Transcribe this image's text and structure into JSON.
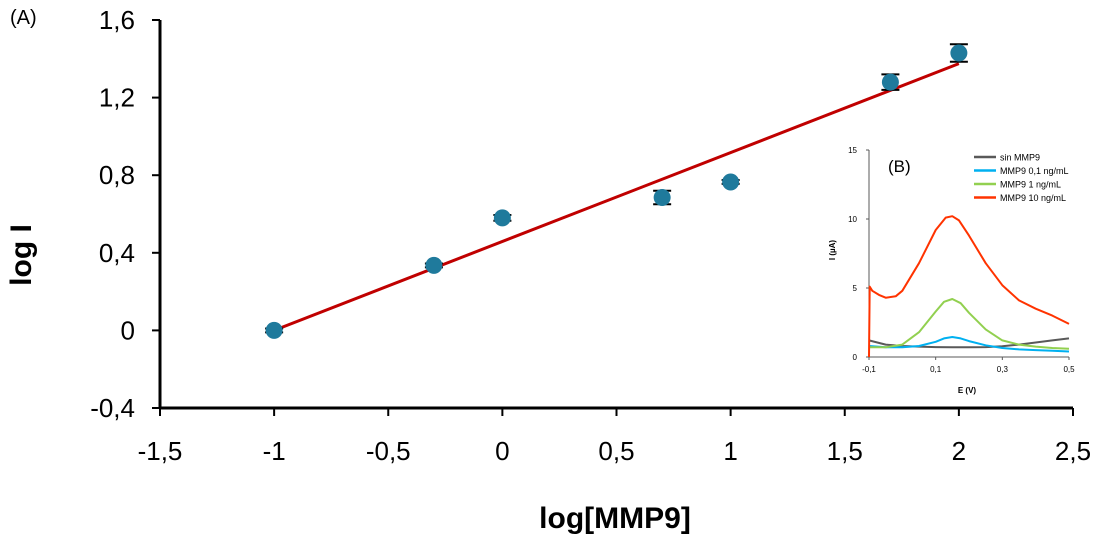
{
  "chart_data": [
    {
      "type": "scatter",
      "panel_label": "(A)",
      "xlabel": "log[MMP9]",
      "ylabel": "log I",
      "xlim": [
        -1.5,
        2.5
      ],
      "ylim": [
        -0.4,
        1.6
      ],
      "xticks": [
        -1.5,
        -1,
        -0.5,
        0,
        0.5,
        1,
        1.5,
        2,
        2.5
      ],
      "yticks": [
        -0.4,
        0,
        0.4,
        0.8,
        1.2,
        1.6
      ],
      "xtick_labels": [
        "-1,5",
        "-1",
        "-0,5",
        "0",
        "0,5",
        "1",
        "1,5",
        "2",
        "2,5"
      ],
      "ytick_labels": [
        "-0,4",
        "0",
        "0,4",
        "0,8",
        "1,2",
        "1,6"
      ],
      "grid": false,
      "points": [
        {
          "x": -1,
          "y": 0.0,
          "err": 0.01
        },
        {
          "x": -0.3,
          "y": 0.335,
          "err": 0.01
        },
        {
          "x": 0,
          "y": 0.58,
          "err": 0.015
        },
        {
          "x": 0.7,
          "y": 0.685,
          "err": 0.035
        },
        {
          "x": 1,
          "y": 0.765,
          "err": 0.01
        },
        {
          "x": 1.7,
          "y": 1.28,
          "err": 0.04
        },
        {
          "x": 2,
          "y": 1.43,
          "err": 0.045
        }
      ],
      "fit_line": {
        "x": [
          -1,
          2
        ],
        "y": [
          0.0,
          1.375
        ]
      },
      "colors": {
        "points": "#1f7a9c",
        "fit_line": "#c00000",
        "error_bars": "#000000"
      }
    },
    {
      "type": "line",
      "panel_label": "(B)",
      "xlabel": "E (V)",
      "ylabel": "I (µA)",
      "xlim": [
        -0.1,
        0.5
      ],
      "ylim": [
        0,
        15
      ],
      "xticks": [
        -0.1,
        0.1,
        0.3,
        0.5
      ],
      "yticks": [
        0,
        5,
        10,
        15
      ],
      "xtick_labels": [
        "-0,1",
        "0,1",
        "0,3",
        "0,5"
      ],
      "ytick_labels": [
        "0",
        "5",
        "10",
        "15"
      ],
      "legend_position": "top-right",
      "series": [
        {
          "name": "sin MMP9",
          "color": "#595959",
          "x": [
            -0.1,
            -0.05,
            0,
            0.05,
            0.1,
            0.15,
            0.2,
            0.25,
            0.3,
            0.35,
            0.4,
            0.45,
            0.5
          ],
          "y": [
            1.2,
            0.9,
            0.8,
            0.75,
            0.72,
            0.7,
            0.7,
            0.72,
            0.78,
            0.9,
            1.05,
            1.2,
            1.35
          ]
        },
        {
          "name": "MMP9 0,1 ng/mL",
          "color": "#00b0f0",
          "x": [
            -0.1,
            -0.05,
            0,
            0.05,
            0.1,
            0.125,
            0.15,
            0.175,
            0.2,
            0.25,
            0.3,
            0.35,
            0.4,
            0.45,
            0.5
          ],
          "y": [
            0.8,
            0.7,
            0.7,
            0.8,
            1.1,
            1.35,
            1.45,
            1.35,
            1.15,
            0.85,
            0.65,
            0.55,
            0.5,
            0.45,
            0.4
          ]
        },
        {
          "name": "MMP9 1 ng/mL",
          "color": "#92d050",
          "x": [
            -0.1,
            -0.05,
            0,
            0.05,
            0.1,
            0.125,
            0.15,
            0.175,
            0.2,
            0.25,
            0.3,
            0.35,
            0.4,
            0.45,
            0.5
          ],
          "y": [
            0.7,
            0.7,
            0.9,
            1.8,
            3.3,
            4.0,
            4.2,
            3.9,
            3.2,
            2.0,
            1.2,
            0.9,
            0.75,
            0.65,
            0.6
          ]
        },
        {
          "name": "MMP9 10 ng/mL",
          "color": "#ff3300",
          "x": [
            -0.1,
            -0.098,
            -0.09,
            -0.07,
            -0.05,
            -0.02,
            0,
            0.05,
            0.1,
            0.13,
            0.15,
            0.17,
            0.2,
            0.25,
            0.3,
            0.35,
            0.4,
            0.45,
            0.5
          ],
          "y": [
            0.0,
            5.1,
            4.8,
            4.5,
            4.3,
            4.4,
            4.8,
            6.8,
            9.2,
            10.1,
            10.2,
            9.9,
            8.8,
            6.8,
            5.2,
            4.1,
            3.5,
            3.0,
            2.4
          ]
        }
      ]
    }
  ]
}
